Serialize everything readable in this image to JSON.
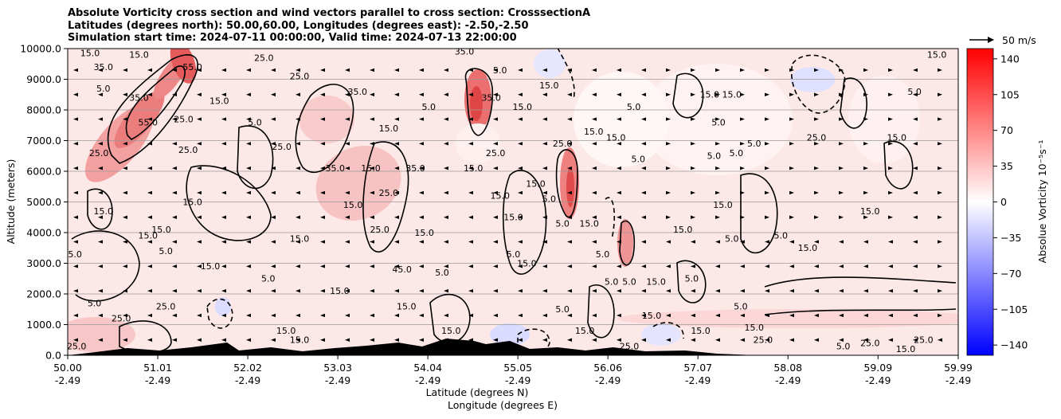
{
  "header": {
    "title_line1": "Absolute Vorticity cross section and wind vectors parallel to cross section: CrosssectionA",
    "title_line2": "Latitudes (degrees north): 50.00,60.00, Longitudes (degrees east): -2.50,-2.50",
    "title_line3": "Simulation start time: 2024-07-11 00:00:00, Valid time: 2024-07-13 22:00:00"
  },
  "chart_data": {
    "type": "heatmap",
    "xlabel": "Latitude (degrees N)",
    "xlabel2": "Longitude (degrees E)",
    "ylabel": "Altitude (meters)",
    "xlim": [
      50.0,
      59.99
    ],
    "ylim": [
      0,
      10000
    ],
    "x_ticks": [
      {
        "lat": "50.00",
        "lon": "-2.49",
        "value": 50.0
      },
      {
        "lat": "51.01",
        "lon": "-2.49",
        "value": 51.01
      },
      {
        "lat": "52.02",
        "lon": "-2.49",
        "value": 52.02
      },
      {
        "lat": "53.03",
        "lon": "-2.49",
        "value": 53.03
      },
      {
        "lat": "54.04",
        "lon": "-2.49",
        "value": 54.04
      },
      {
        "lat": "55.05",
        "lon": "-2.49",
        "value": 55.05
      },
      {
        "lat": "56.06",
        "lon": "-2.49",
        "value": 56.06
      },
      {
        "lat": "57.07",
        "lon": "-2.49",
        "value": 57.07
      },
      {
        "lat": "58.08",
        "lon": "-2.49",
        "value": 58.08
      },
      {
        "lat": "59.09",
        "lon": "-2.49",
        "value": 59.09
      },
      {
        "lat": "59.99",
        "lon": "-2.49",
        "value": 59.99
      }
    ],
    "y_ticks": [
      {
        "label": "0.0",
        "value": 0
      },
      {
        "label": "1000.0",
        "value": 1000
      },
      {
        "label": "2000.0",
        "value": 2000
      },
      {
        "label": "3000.0",
        "value": 3000
      },
      {
        "label": "4000.0",
        "value": 4000
      },
      {
        "label": "5000.0",
        "value": 5000
      },
      {
        "label": "6000.0",
        "value": 6000
      },
      {
        "label": "7000.0",
        "value": 7000
      },
      {
        "label": "8000.0",
        "value": 8000
      },
      {
        "label": "9000.0",
        "value": 9000
      },
      {
        "label": "10000.0",
        "value": 10000
      }
    ],
    "grid": "horizontal",
    "colorbar": {
      "label": "Absolue Vorticity 10⁻⁵s⁻¹",
      "range": [
        -150,
        150
      ],
      "colormap": "bwr",
      "ticks": [
        {
          "label": "140",
          "value": 140
        },
        {
          "label": "105",
          "value": 105
        },
        {
          "label": "70",
          "value": 70
        },
        {
          "label": "35",
          "value": 35
        },
        {
          "label": "0",
          "value": 0
        },
        {
          "label": "−35",
          "value": -35
        },
        {
          "label": "−70",
          "value": -70
        },
        {
          "label": "−105",
          "value": -105
        },
        {
          "label": "−140",
          "value": -140
        }
      ]
    },
    "quiver_key": {
      "label": "50 m/s"
    },
    "contour_labels": [
      {
        "text": "15.0",
        "lat": 50.25,
        "alt": 9750
      },
      {
        "text": "35.0",
        "lat": 50.4,
        "alt": 9300
      },
      {
        "text": "5.0",
        "lat": 50.4,
        "alt": 8600
      },
      {
        "text": "15.0",
        "lat": 50.8,
        "alt": 9700
      },
      {
        "text": "55.0",
        "lat": 51.4,
        "alt": 9300
      },
      {
        "text": "35.0",
        "lat": 50.8,
        "alt": 8300
      },
      {
        "text": "55.0",
        "lat": 50.9,
        "alt": 7500
      },
      {
        "text": "25.0",
        "lat": 51.3,
        "alt": 7600
      },
      {
        "text": "15.0",
        "lat": 51.7,
        "alt": 8200
      },
      {
        "text": "25.0",
        "lat": 52.2,
        "alt": 9600
      },
      {
        "text": "25.0",
        "lat": 52.6,
        "alt": 9000
      },
      {
        "text": "5.0",
        "lat": 52.1,
        "alt": 7500
      },
      {
        "text": "25.0",
        "lat": 51.35,
        "alt": 6600
      },
      {
        "text": "25.0",
        "lat": 50.35,
        "alt": 6500
      },
      {
        "text": "15.0",
        "lat": 51.4,
        "alt": 4900
      },
      {
        "text": "15.0",
        "lat": 51.05,
        "alt": 4000
      },
      {
        "text": "15.0",
        "lat": 50.4,
        "alt": 4600
      },
      {
        "text": "15.0",
        "lat": 50.9,
        "alt": 3800
      },
      {
        "text": "15.0",
        "lat": 50.05,
        "alt": 3200
      },
      {
        "text": "5.0",
        "lat": 51.1,
        "alt": 3300
      },
      {
        "text": "15.0",
        "lat": 51.6,
        "alt": 2800
      },
      {
        "text": "5.0",
        "lat": 52.25,
        "alt": 2400
      },
      {
        "text": "5.0",
        "lat": 50.3,
        "alt": 1600
      },
      {
        "text": "25.0",
        "lat": 51.1,
        "alt": 1500
      },
      {
        "text": "25.0",
        "lat": 50.6,
        "alt": 1100
      },
      {
        "text": "15.0",
        "lat": 52.45,
        "alt": 700
      },
      {
        "text": "15.0",
        "lat": 52.6,
        "alt": 400
      },
      {
        "text": "25.0",
        "lat": 50.1,
        "alt": 200
      },
      {
        "text": "35.0",
        "lat": 53.0,
        "alt": 6000
      },
      {
        "text": "15.0",
        "lat": 53.4,
        "alt": 6000
      },
      {
        "text": "35.0",
        "lat": 53.25,
        "alt": 8500
      },
      {
        "text": "15.0",
        "lat": 53.6,
        "alt": 7300
      },
      {
        "text": "25.0",
        "lat": 52.4,
        "alt": 6700
      },
      {
        "text": "15.0",
        "lat": 53.2,
        "alt": 4800
      },
      {
        "text": "25.0",
        "lat": 53.6,
        "alt": 5200
      },
      {
        "text": "15.0",
        "lat": 52.6,
        "alt": 3700
      },
      {
        "text": "15.0",
        "lat": 53.05,
        "alt": 2000
      },
      {
        "text": "25.0",
        "lat": 53.5,
        "alt": 4000
      },
      {
        "text": "35.0",
        "lat": 53.9,
        "alt": 6000
      },
      {
        "text": "45.0",
        "lat": 53.75,
        "alt": 2700
      },
      {
        "text": "15.0",
        "lat": 53.8,
        "alt": 1500
      },
      {
        "text": "15.0",
        "lat": 54.0,
        "alt": 3900
      },
      {
        "text": "5.0",
        "lat": 54.2,
        "alt": 2600
      },
      {
        "text": "35.0",
        "lat": 54.45,
        "alt": 9800
      },
      {
        "text": "5.0",
        "lat": 54.05,
        "alt": 8000
      },
      {
        "text": "15.0",
        "lat": 54.55,
        "alt": 6000
      },
      {
        "text": "25.0",
        "lat": 54.8,
        "alt": 6500
      },
      {
        "text": "35.0",
        "lat": 54.75,
        "alt": 8300
      },
      {
        "text": "5.0",
        "lat": 54.85,
        "alt": 9200
      },
      {
        "text": "15.0",
        "lat": 54.85,
        "alt": 5100
      },
      {
        "text": "15.0",
        "lat": 55.0,
        "alt": 4400
      },
      {
        "text": "5.0",
        "lat": 55.0,
        "alt": 3200
      },
      {
        "text": "15.0",
        "lat": 54.3,
        "alt": 700
      },
      {
        "text": "15.0",
        "lat": 55.15,
        "alt": 2900
      },
      {
        "text": "15.0",
        "lat": 55.25,
        "alt": 5500
      },
      {
        "text": "5.0",
        "lat": 55.4,
        "alt": 5000
      },
      {
        "text": "15.0",
        "lat": 55.9,
        "alt": 7200
      },
      {
        "text": "25.0",
        "lat": 55.55,
        "alt": 6800
      },
      {
        "text": "5.0",
        "lat": 55.55,
        "alt": 4200
      },
      {
        "text": "5.0",
        "lat": 55.55,
        "alt": 1400
      },
      {
        "text": "15.0",
        "lat": 55.85,
        "alt": 4200
      },
      {
        "text": "5.0",
        "lat": 56.1,
        "alt": 2300
      },
      {
        "text": "5.0",
        "lat": 56.3,
        "alt": 2300
      },
      {
        "text": "5.0",
        "lat": 56.0,
        "alt": 3200
      },
      {
        "text": "15.0",
        "lat": 55.1,
        "alt": 8000
      },
      {
        "text": "15.0",
        "lat": 55.4,
        "alt": 8700
      },
      {
        "text": "5.0",
        "lat": 56.35,
        "alt": 8000
      },
      {
        "text": "15.0",
        "lat": 56.15,
        "alt": 7000
      },
      {
        "text": "5.0",
        "lat": 56.4,
        "alt": 6300
      },
      {
        "text": "15.0",
        "lat": 56.6,
        "alt": 2300
      },
      {
        "text": "15.0",
        "lat": 56.55,
        "alt": 1200
      },
      {
        "text": "15.0",
        "lat": 57.2,
        "alt": 8400
      },
      {
        "text": "5.0",
        "lat": 57.3,
        "alt": 7500
      },
      {
        "text": "5.0",
        "lat": 57.5,
        "alt": 6500
      },
      {
        "text": "5.0",
        "lat": 57.25,
        "alt": 6400
      },
      {
        "text": "15.0",
        "lat": 57.35,
        "alt": 4800
      },
      {
        "text": "15.0",
        "lat": 56.9,
        "alt": 4000
      },
      {
        "text": "5.0",
        "lat": 57.7,
        "alt": 6800
      },
      {
        "text": "25.0",
        "lat": 58.4,
        "alt": 7000
      },
      {
        "text": "15.0",
        "lat": 57.45,
        "alt": 8400
      },
      {
        "text": "15.0",
        "lat": 57.7,
        "alt": 800
      },
      {
        "text": "5.0",
        "lat": 57.45,
        "alt": 3700
      },
      {
        "text": "15.0",
        "lat": 58.3,
        "alt": 3400
      },
      {
        "text": "15.0",
        "lat": 59.0,
        "alt": 4600
      },
      {
        "text": "15.0",
        "lat": 59.3,
        "alt": 7000
      },
      {
        "text": "5.0",
        "lat": 58.0,
        "alt": 3800
      },
      {
        "text": "5.0",
        "lat": 59.5,
        "alt": 8500
      },
      {
        "text": "15.0",
        "lat": 59.75,
        "alt": 9700
      },
      {
        "text": "25.0",
        "lat": 59.0,
        "alt": 300
      },
      {
        "text": "25.0",
        "lat": 59.6,
        "alt": 400
      },
      {
        "text": "15.0",
        "lat": 59.4,
        "alt": 100
      },
      {
        "text": "5.0",
        "lat": 58.7,
        "alt": 200
      },
      {
        "text": "25.0",
        "lat": 56.3,
        "alt": 200
      },
      {
        "text": "5.0",
        "lat": 57.55,
        "alt": 1500
      },
      {
        "text": "5.0",
        "lat": 57.0,
        "alt": 2400
      },
      {
        "text": "15.0",
        "lat": 55.8,
        "alt": 700
      },
      {
        "text": "25.0",
        "lat": 57.8,
        "alt": 400
      },
      {
        "text": "15.0",
        "lat": 57.1,
        "alt": 700
      }
    ]
  }
}
